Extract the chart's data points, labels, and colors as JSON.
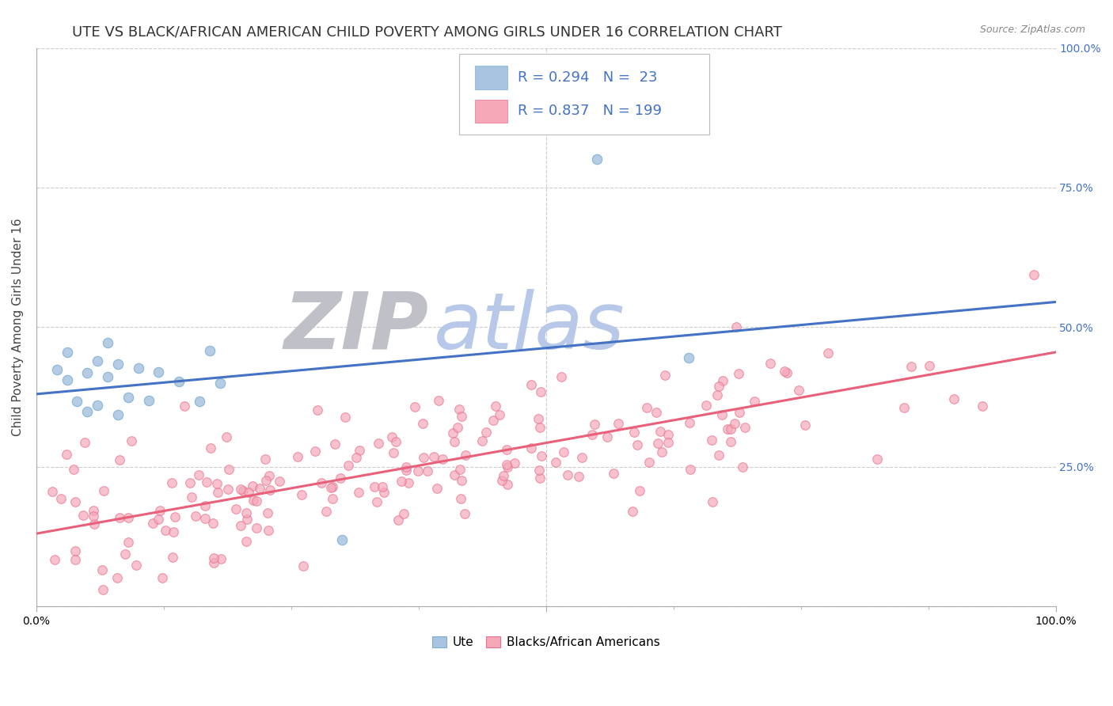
{
  "title": "UTE VS BLACK/AFRICAN AMERICAN CHILD POVERTY AMONG GIRLS UNDER 16 CORRELATION CHART",
  "source": "Source: ZipAtlas.com",
  "ylabel": "Child Poverty Among Girls Under 16",
  "legend_label1": "Ute",
  "legend_label2": "Blacks/African Americans",
  "r1": 0.294,
  "n1": 23,
  "r2": 0.837,
  "n2": 199,
  "color_ute": "#a8c4e0",
  "color_ute_edge": "#7aafd4",
  "color_black": "#f4a8b8",
  "color_black_edge": "#e87090",
  "color_ute_line": "#4472c4",
  "color_black_line": "#e8607a",
  "color_r_value": "#4472c4",
  "watermark_zip": "#c0c0c8",
  "watermark_atlas": "#b8c8e8",
  "bg_color": "#ffffff",
  "grid_color": "#c8c8c8",
  "title_fontsize": 13,
  "axis_fontsize": 11,
  "tick_fontsize": 10,
  "legend_fontsize": 13,
  "xlim": [
    0.0,
    1.0
  ],
  "ylim": [
    0.0,
    1.0
  ],
  "ute_line_x0": 0.0,
  "ute_line_x1": 1.0,
  "ute_line_y0": 0.38,
  "ute_line_y1": 0.545,
  "black_line_x0": 0.0,
  "black_line_x1": 1.0,
  "black_line_y0": 0.13,
  "black_line_y1": 0.455
}
